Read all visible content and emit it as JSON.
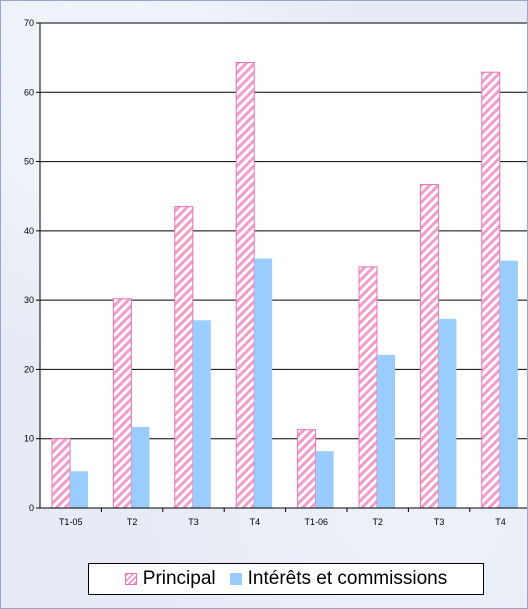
{
  "chart_data": {
    "type": "bar",
    "categories": [
      "T1-05",
      "T2",
      "T3",
      "T4",
      "T1-06",
      "T2",
      "T3",
      "T4"
    ],
    "series": [
      {
        "name": "Principal",
        "values": [
          10,
          30.2,
          43.5,
          64.3,
          11.3,
          34.8,
          46.7,
          62.9
        ],
        "color": "#f49cc8",
        "pattern": "diagonal-stripes"
      },
      {
        "name": "Intérêts et commissions",
        "values": [
          5.3,
          11.7,
          27.1,
          36.0,
          8.2,
          22.1,
          27.3,
          35.7
        ],
        "color": "#99ccff",
        "pattern": "solid"
      }
    ],
    "y_ticks": [
      0,
      10,
      20,
      30,
      40,
      50,
      60,
      70
    ],
    "ylim": [
      0,
      70
    ],
    "grid": "horizontal",
    "legend": "bottom",
    "title": "",
    "xlabel": "",
    "ylabel": ""
  }
}
